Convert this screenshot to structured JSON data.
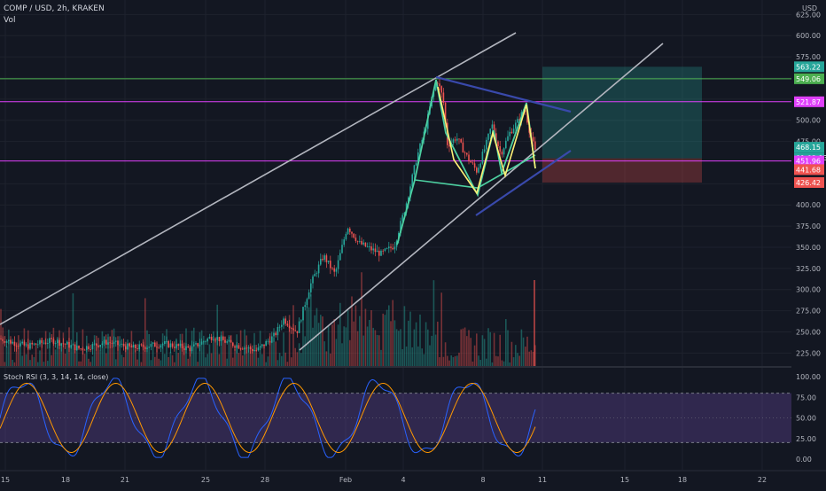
{
  "header": {
    "symbol_line": "COMP / USD, 2h, KRAKEN",
    "vol_label": "Vol"
  },
  "price_axis": {
    "currency": "USD",
    "ticks": [
      "625.00",
      "600.00",
      "575.00",
      "550.00",
      "525.00",
      "500.00",
      "475.00",
      "425.00",
      "400.00",
      "375.00",
      "350.00",
      "325.00",
      "300.00",
      "275.00",
      "250.00",
      "225.00"
    ],
    "tags": [
      {
        "label": "563.22",
        "color": "#26a69a",
        "price": 563.22
      },
      {
        "label": "549.06",
        "color": "#4caf50",
        "price": 549.06
      },
      {
        "label": "521.87",
        "color": "#e040fb",
        "price": 521.87
      },
      {
        "label": "468.15",
        "color": "#26a69a",
        "price": 468.15
      },
      {
        "label": "01:02:13",
        "color": "#26a69a",
        "price": 455.5
      },
      {
        "label": "451.96",
        "color": "#e040fb",
        "price": 451.96
      },
      {
        "label": "441.68",
        "color": "#ef5350",
        "price": 441.68
      },
      {
        "label": "426.42",
        "color": "#ef5350",
        "price": 426.42
      }
    ]
  },
  "time_axis": {
    "ticks": [
      "15",
      "18",
      "21",
      "25",
      "28",
      "Feb",
      "4",
      "8",
      "11",
      "15",
      "18",
      "22"
    ]
  },
  "indicator": {
    "label": "Stoch RSI (3, 3, 14, 14, close)",
    "ticks": [
      "100.00",
      "75.00",
      "50.00",
      "25.00",
      "0.00"
    ]
  },
  "chart_data": {
    "type": "candlestick",
    "price_ylim": [
      218,
      640
    ],
    "horizontal_levels": [
      {
        "price": 549.06,
        "color": "#4caf50"
      },
      {
        "price": 521.87,
        "color": "#e040fb"
      },
      {
        "price": 451.96,
        "color": "#e040fb"
      }
    ],
    "position_box": {
      "entry": 455.0,
      "target": 563.22,
      "stop": 426.42
    },
    "stoch_band": [
      20,
      80
    ],
    "colors": {
      "up": "#26a69a",
      "down": "#ef5350",
      "k": "#2962ff",
      "d": "#ff9800",
      "band": "#7e57c2"
    }
  }
}
